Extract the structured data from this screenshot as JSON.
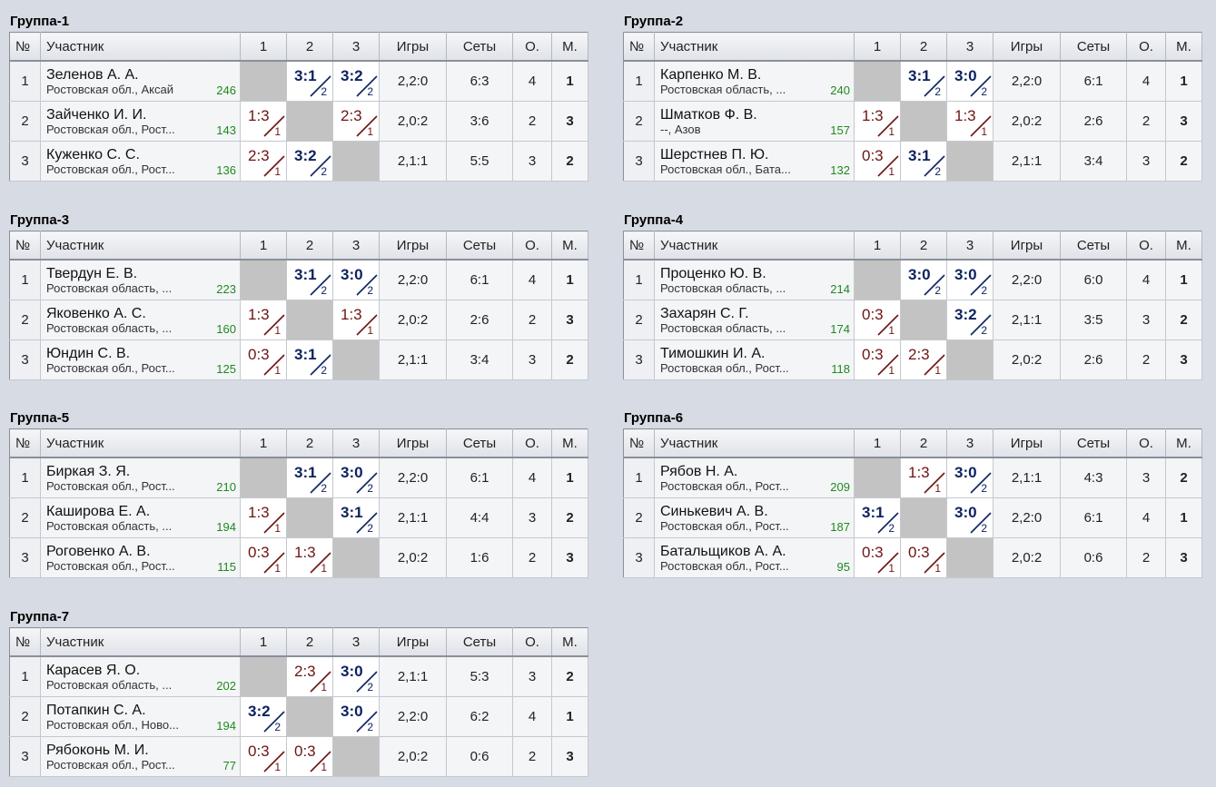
{
  "headers": {
    "no": "№",
    "participant": "Участник",
    "c1": "1",
    "c2": "2",
    "c3": "3",
    "games": "Игры",
    "sets": "Сеты",
    "points": "О.",
    "place": "М."
  },
  "groups": [
    {
      "title": "Группа-1",
      "rows": [
        {
          "no": "1",
          "name": "Зеленов А. А.",
          "region": "Ростовская обл., Аксай",
          "rating": "246",
          "scores": [
            null,
            {
              "score": "3:1",
              "pts": "2",
              "win": true
            },
            {
              "score": "3:2",
              "pts": "2",
              "win": true
            }
          ],
          "games": "2,2:0",
          "sets": "6:3",
          "points": "4",
          "place": "1"
        },
        {
          "no": "2",
          "name": "Зайченко И. И.",
          "region": "Ростовская обл., Рост...",
          "rating": "143",
          "scores": [
            {
              "score": "1:3",
              "pts": "1",
              "win": false
            },
            null,
            {
              "score": "2:3",
              "pts": "1",
              "win": false
            }
          ],
          "games": "2,0:2",
          "sets": "3:6",
          "points": "2",
          "place": "3"
        },
        {
          "no": "3",
          "name": "Куженко С. С.",
          "region": "Ростовская обл., Рост...",
          "rating": "136",
          "scores": [
            {
              "score": "2:3",
              "pts": "1",
              "win": false
            },
            {
              "score": "3:2",
              "pts": "2",
              "win": true
            },
            null
          ],
          "games": "2,1:1",
          "sets": "5:5",
          "points": "3",
          "place": "2"
        }
      ]
    },
    {
      "title": "Группа-2",
      "rows": [
        {
          "no": "1",
          "name": "Карпенко М. В.",
          "region": "Ростовская область, ...",
          "rating": "240",
          "scores": [
            null,
            {
              "score": "3:1",
              "pts": "2",
              "win": true
            },
            {
              "score": "3:0",
              "pts": "2",
              "win": true
            }
          ],
          "games": "2,2:0",
          "sets": "6:1",
          "points": "4",
          "place": "1"
        },
        {
          "no": "2",
          "name": "Шматков Ф. В.",
          "region": "--, Азов",
          "rating": "157",
          "scores": [
            {
              "score": "1:3",
              "pts": "1",
              "win": false
            },
            null,
            {
              "score": "1:3",
              "pts": "1",
              "win": false
            }
          ],
          "games": "2,0:2",
          "sets": "2:6",
          "points": "2",
          "place": "3"
        },
        {
          "no": "3",
          "name": "Шерстнев П. Ю.",
          "region": "Ростовская обл., Бата...",
          "rating": "132",
          "scores": [
            {
              "score": "0:3",
              "pts": "1",
              "win": false
            },
            {
              "score": "3:1",
              "pts": "2",
              "win": true
            },
            null
          ],
          "games": "2,1:1",
          "sets": "3:4",
          "points": "3",
          "place": "2"
        }
      ]
    },
    {
      "title": "Группа-3",
      "rows": [
        {
          "no": "1",
          "name": "Твердун Е. В.",
          "region": "Ростовская область, ...",
          "rating": "223",
          "scores": [
            null,
            {
              "score": "3:1",
              "pts": "2",
              "win": true
            },
            {
              "score": "3:0",
              "pts": "2",
              "win": true
            }
          ],
          "games": "2,2:0",
          "sets": "6:1",
          "points": "4",
          "place": "1"
        },
        {
          "no": "2",
          "name": "Яковенко А. С.",
          "region": "Ростовская область, ...",
          "rating": "160",
          "scores": [
            {
              "score": "1:3",
              "pts": "1",
              "win": false
            },
            null,
            {
              "score": "1:3",
              "pts": "1",
              "win": false
            }
          ],
          "games": "2,0:2",
          "sets": "2:6",
          "points": "2",
          "place": "3"
        },
        {
          "no": "3",
          "name": "Юндин С. В.",
          "region": "Ростовская обл., Рост...",
          "rating": "125",
          "scores": [
            {
              "score": "0:3",
              "pts": "1",
              "win": false
            },
            {
              "score": "3:1",
              "pts": "2",
              "win": true
            },
            null
          ],
          "games": "2,1:1",
          "sets": "3:4",
          "points": "3",
          "place": "2"
        }
      ]
    },
    {
      "title": "Группа-4",
      "rows": [
        {
          "no": "1",
          "name": "Проценко Ю. В.",
          "region": "Ростовская область, ...",
          "rating": "214",
          "scores": [
            null,
            {
              "score": "3:0",
              "pts": "2",
              "win": true
            },
            {
              "score": "3:0",
              "pts": "2",
              "win": true
            }
          ],
          "games": "2,2:0",
          "sets": "6:0",
          "points": "4",
          "place": "1"
        },
        {
          "no": "2",
          "name": "Захарян С. Г.",
          "region": "Ростовская область, ...",
          "rating": "174",
          "scores": [
            {
              "score": "0:3",
              "pts": "1",
              "win": false
            },
            null,
            {
              "score": "3:2",
              "pts": "2",
              "win": true
            }
          ],
          "games": "2,1:1",
          "sets": "3:5",
          "points": "3",
          "place": "2"
        },
        {
          "no": "3",
          "name": "Тимошкин И. А.",
          "region": "Ростовская обл., Рост...",
          "rating": "118",
          "scores": [
            {
              "score": "0:3",
              "pts": "1",
              "win": false
            },
            {
              "score": "2:3",
              "pts": "1",
              "win": false
            },
            null
          ],
          "games": "2,0:2",
          "sets": "2:6",
          "points": "2",
          "place": "3"
        }
      ]
    },
    {
      "title": "Группа-5",
      "rows": [
        {
          "no": "1",
          "name": "Биркая З. Я.",
          "region": "Ростовская обл., Рост...",
          "rating": "210",
          "scores": [
            null,
            {
              "score": "3:1",
              "pts": "2",
              "win": true
            },
            {
              "score": "3:0",
              "pts": "2",
              "win": true
            }
          ],
          "games": "2,2:0",
          "sets": "6:1",
          "points": "4",
          "place": "1"
        },
        {
          "no": "2",
          "name": "Каширова Е. А.",
          "region": "Ростовская область, ...",
          "rating": "194",
          "scores": [
            {
              "score": "1:3",
              "pts": "1",
              "win": false
            },
            null,
            {
              "score": "3:1",
              "pts": "2",
              "win": true
            }
          ],
          "games": "2,1:1",
          "sets": "4:4",
          "points": "3",
          "place": "2"
        },
        {
          "no": "3",
          "name": "Роговенко А. В.",
          "region": "Ростовская обл., Рост...",
          "rating": "115",
          "scores": [
            {
              "score": "0:3",
              "pts": "1",
              "win": false
            },
            {
              "score": "1:3",
              "pts": "1",
              "win": false
            },
            null
          ],
          "games": "2,0:2",
          "sets": "1:6",
          "points": "2",
          "place": "3"
        }
      ]
    },
    {
      "title": "Группа-6",
      "rows": [
        {
          "no": "1",
          "name": "Рябов Н. А.",
          "region": "Ростовская обл., Рост...",
          "rating": "209",
          "scores": [
            null,
            {
              "score": "1:3",
              "pts": "1",
              "win": false
            },
            {
              "score": "3:0",
              "pts": "2",
              "win": true
            }
          ],
          "games": "2,1:1",
          "sets": "4:3",
          "points": "3",
          "place": "2"
        },
        {
          "no": "2",
          "name": "Синькевич А. В.",
          "region": "Ростовская обл., Рост...",
          "rating": "187",
          "scores": [
            {
              "score": "3:1",
              "pts": "2",
              "win": true
            },
            null,
            {
              "score": "3:0",
              "pts": "2",
              "win": true
            }
          ],
          "games": "2,2:0",
          "sets": "6:1",
          "points": "4",
          "place": "1"
        },
        {
          "no": "3",
          "name": "Батальщиков А. А.",
          "region": "Ростовская обл., Рост...",
          "rating": "95",
          "scores": [
            {
              "score": "0:3",
              "pts": "1",
              "win": false
            },
            {
              "score": "0:3",
              "pts": "1",
              "win": false
            },
            null
          ],
          "games": "2,0:2",
          "sets": "0:6",
          "points": "2",
          "place": "3"
        }
      ]
    },
    {
      "title": "Группа-7",
      "rows": [
        {
          "no": "1",
          "name": "Карасев Я. О.",
          "region": "Ростовская область, ...",
          "rating": "202",
          "scores": [
            null,
            {
              "score": "2:3",
              "pts": "1",
              "win": false
            },
            {
              "score": "3:0",
              "pts": "2",
              "win": true
            }
          ],
          "games": "2,1:1",
          "sets": "5:3",
          "points": "3",
          "place": "2"
        },
        {
          "no": "2",
          "name": "Потапкин С. А.",
          "region": "Ростовская обл., Ново...",
          "rating": "194",
          "scores": [
            {
              "score": "3:2",
              "pts": "2",
              "win": true
            },
            null,
            {
              "score": "3:0",
              "pts": "2",
              "win": true
            }
          ],
          "games": "2,2:0",
          "sets": "6:2",
          "points": "4",
          "place": "1"
        },
        {
          "no": "3",
          "name": "Рябоконь М. И.",
          "region": "Ростовская обл., Рост...",
          "rating": "77",
          "scores": [
            {
              "score": "0:3",
              "pts": "1",
              "win": false
            },
            {
              "score": "0:3",
              "pts": "1",
              "win": false
            },
            null
          ],
          "games": "2,0:2",
          "sets": "0:6",
          "points": "2",
          "place": "3"
        }
      ]
    }
  ]
}
